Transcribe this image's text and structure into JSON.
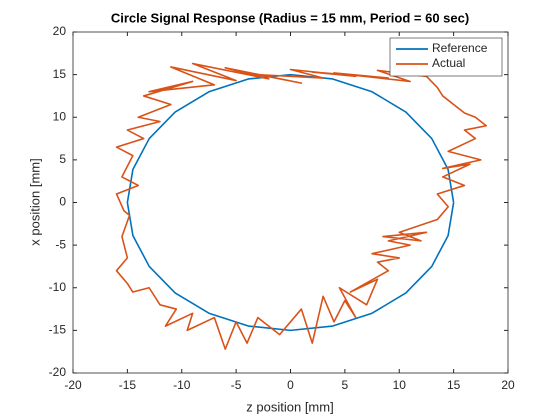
{
  "chart_data": {
    "type": "line",
    "title": "Circle Signal Response (Radius = 15 mm, Period = 60 sec)",
    "xlabel": "z position [mm]",
    "ylabel": "x position [mm]",
    "xlim": [
      -20,
      20
    ],
    "ylim": [
      -20,
      20
    ],
    "xticks": [
      -20,
      -15,
      -10,
      -5,
      0,
      5,
      10,
      15,
      20
    ],
    "yticks": [
      -20,
      -15,
      -10,
      -5,
      0,
      5,
      10,
      15,
      20
    ],
    "legend": "upper right",
    "series": [
      {
        "name": "Reference",
        "color": "#0072bd",
        "x": [
          15,
          14.49,
          12.99,
          10.61,
          7.5,
          3.88,
          0,
          -3.88,
          -7.5,
          -10.61,
          -12.99,
          -14.49,
          -15,
          -14.49,
          -12.99,
          -10.61,
          -7.5,
          -3.88,
          0,
          3.88,
          7.5,
          10.61,
          12.99,
          14.49,
          15
        ],
        "values": [
          0,
          3.88,
          7.5,
          10.61,
          12.99,
          14.49,
          15,
          14.49,
          12.99,
          10.61,
          7.5,
          3.88,
          0,
          -3.88,
          -7.5,
          -10.61,
          -12.99,
          -14.49,
          -15,
          -14.49,
          -12.99,
          -10.61,
          -7.5,
          -3.88,
          0
        ]
      },
      {
        "name": "Actual",
        "color": "#d95319",
        "x": [
          12.5,
          8,
          11,
          4,
          9,
          2,
          6,
          0,
          3,
          -3,
          1,
          -6,
          -2,
          -9,
          -5,
          -11,
          -7,
          -13,
          -9,
          -13.5,
          -11,
          -14,
          -12,
          -15,
          -13.5,
          -16,
          -14.5,
          -15.5,
          -14,
          -16,
          -15.3,
          -14.8,
          -15.5,
          -15,
          -16,
          -15,
          -14.5,
          -13,
          -12,
          -10.5,
          -11.5,
          -9,
          -9.5,
          -7,
          -6,
          -5,
          -4,
          -3,
          -1,
          1,
          2,
          3,
          4,
          5,
          6,
          4.5,
          7,
          8,
          5.5,
          9,
          8,
          10,
          7.5,
          11,
          9,
          12.5,
          8.5,
          12,
          10,
          13.5,
          14.5,
          13.5,
          16,
          14,
          16.5,
          14,
          17.5,
          14.5,
          17,
          16,
          18,
          17,
          16,
          15,
          14,
          13.5,
          12.5
        ],
        "values": [
          14.8,
          15.5,
          14.2,
          15.2,
          14.6,
          15.3,
          14.8,
          15.6,
          14.6,
          15,
          14,
          15.8,
          14.5,
          16.3,
          14.3,
          15.9,
          13.8,
          13,
          14.2,
          12.5,
          11.5,
          10,
          9.5,
          8.5,
          7.5,
          6.5,
          5.5,
          3,
          2,
          1,
          -1,
          -1.5,
          -4,
          -6.5,
          -8,
          -9.5,
          -10.5,
          -10,
          -12,
          -12.5,
          -14.5,
          -13,
          -15,
          -13.5,
          -17.2,
          -14,
          -16.5,
          -13.5,
          -15.5,
          -12.5,
          -16.5,
          -11,
          -14,
          -11.5,
          -13.5,
          -10,
          -12,
          -9,
          -10.5,
          -8,
          -7,
          -6.5,
          -6,
          -5,
          -4.5,
          -3.5,
          -4,
          -4.5,
          -3.5,
          -2,
          -0.5,
          1,
          2,
          3,
          4.5,
          4,
          5,
          6,
          7.5,
          8.5,
          9,
          10,
          10.5,
          11.5,
          12.5,
          13.5,
          14.8
        ]
      }
    ]
  }
}
